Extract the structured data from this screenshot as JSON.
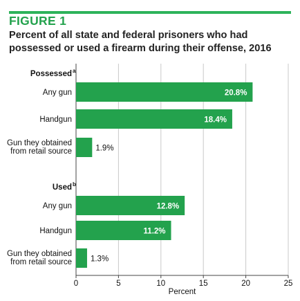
{
  "figure": {
    "label": "FIGURE 1",
    "title": "Percent of all state and federal prisoners who had possessed or used a firearm during their offense, 2016"
  },
  "colors": {
    "accent": "#2db35a",
    "bar": "#23a24d",
    "grid": "#c9c9c9",
    "axis": "#444444"
  },
  "chart_data": {
    "type": "bar",
    "orientation": "horizontal",
    "xlabel": "Percent",
    "xlim": [
      0,
      25
    ],
    "xticks": [
      0,
      5,
      10,
      15,
      20,
      25
    ],
    "grid": true,
    "groups": [
      {
        "name": "Possessed",
        "superscript": "a",
        "bars": [
          {
            "label": [
              "Any gun"
            ],
            "value": 20.8,
            "display": "20.8%"
          },
          {
            "label": [
              "Handgun"
            ],
            "value": 18.4,
            "display": "18.4%"
          },
          {
            "label": [
              "Gun they obtained",
              "from retail source"
            ],
            "value": 1.9,
            "display": "1.9%"
          }
        ]
      },
      {
        "name": "Used",
        "superscript": "b",
        "bars": [
          {
            "label": [
              "Any gun"
            ],
            "value": 12.8,
            "display": "12.8%"
          },
          {
            "label": [
              "Handgun"
            ],
            "value": 11.2,
            "display": "11.2%"
          },
          {
            "label": [
              "Gun they obtained",
              "from retail source"
            ],
            "value": 1.3,
            "display": "1.3%"
          }
        ]
      }
    ]
  }
}
